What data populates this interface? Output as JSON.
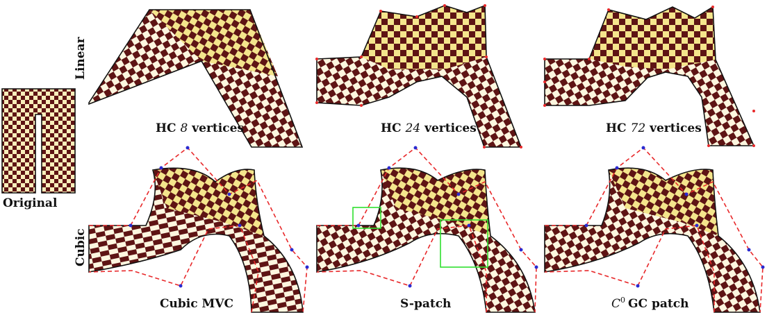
{
  "row_labels": {
    "linear": "Linear",
    "cubic": "Cubic"
  },
  "original_label": "Original",
  "panels": {
    "hc8": {
      "prefix": "HC",
      "num": "8",
      "suffix": "vertices"
    },
    "hc24": {
      "prefix": "HC",
      "num": "24",
      "suffix": "vertices"
    },
    "hc72": {
      "prefix": "HC",
      "num": "72",
      "suffix": "vertices"
    },
    "mvc": {
      "label": "Cubic MVC"
    },
    "spatch": {
      "label": "S-patch"
    },
    "gc": {
      "pre": "C",
      "sup": "0",
      "post": "GC patch"
    }
  },
  "colors": {
    "dark": "#5e1414",
    "light": "#f4e58c",
    "cream": "#fdf6df",
    "cage": "#e8282a",
    "control_point": "#2a2ad0",
    "highlight": "#2fe02f"
  }
}
